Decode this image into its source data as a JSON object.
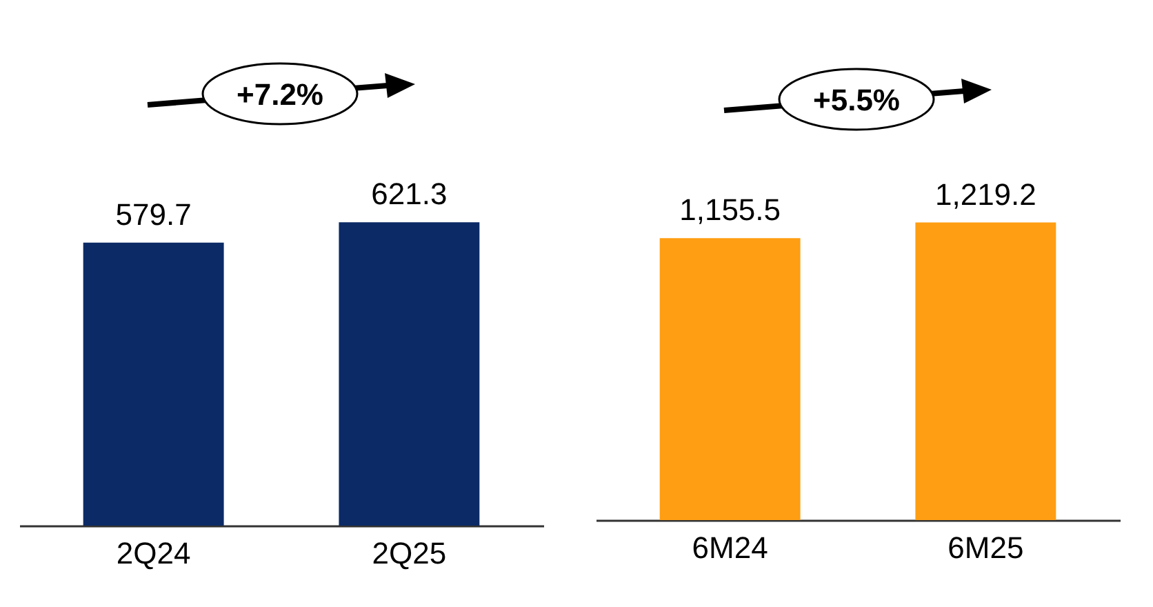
{
  "chart_data": [
    {
      "type": "bar",
      "categories": [
        "2Q24",
        "2Q25"
      ],
      "values": [
        579.7,
        621.3
      ],
      "color": "#0b2a66",
      "data_labels": true,
      "annotations": [
        "+7.2%"
      ]
    },
    {
      "type": "bar",
      "categories": [
        "6M24",
        "6M25"
      ],
      "values": [
        1155.5,
        1219.2
      ],
      "color": "#ff9e12",
      "value_labels": [
        "1,155.5",
        "1,219.2"
      ],
      "annotations": [
        "+5.5%"
      ]
    }
  ]
}
